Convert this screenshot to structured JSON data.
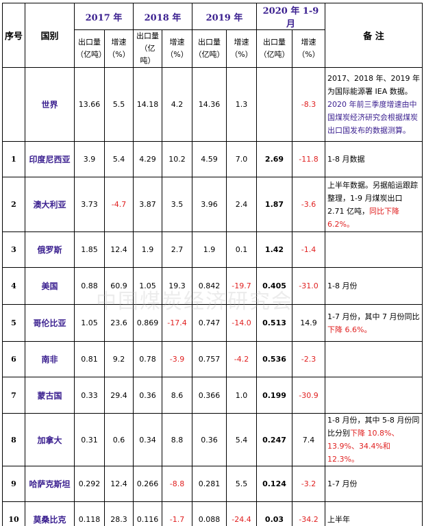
{
  "header": {
    "no": "序号",
    "country": "国别",
    "years": [
      "2017 年",
      "2018 年",
      "2019 年",
      "2020 年 1-9 月"
    ],
    "sub": [
      "出口量（亿吨）",
      "增速（%）"
    ],
    "note": "备 注"
  },
  "watermark": "中国煤炭经济研究会",
  "colors": {
    "country": "#3a1f8f",
    "year": "#3a1f8f",
    "negative": "#e02020",
    "text": "#000000"
  },
  "table": {
    "rows": [
      {
        "no": "",
        "country": "世界",
        "values": [
          "13.66",
          "5.5",
          "14.18",
          "4.2",
          "14.36",
          "1.3",
          "",
          "-8.3"
        ],
        "note": [
          {
            "text": "2017、2018 年、2019 年为国际能源署 IEA 数据。",
            "color": "#000000"
          },
          {
            "text": "2020 年前三季度增速由中国煤炭经济研究会根据煤炭出口国发布的数据测算。",
            "color": "#3a1f8f"
          }
        ]
      },
      {
        "no": "1",
        "country": "印度尼西亚",
        "values": [
          "3.9",
          "5.4",
          "4.29",
          "10.2",
          "4.59",
          "7.0",
          "2.69",
          "-11.8"
        ],
        "note": [
          {
            "text": "1-8 月数据",
            "color": "#000000"
          }
        ]
      },
      {
        "no": "2",
        "country": "澳大利亚",
        "values": [
          "3.73",
          "-4.7",
          "3.87",
          "3.5",
          "3.96",
          "2.4",
          "1.87",
          "-3.6"
        ],
        "note": [
          {
            "text": "上半年数据。另据船运跟踪整理，1-9 月煤炭出口 2.71 亿吨，",
            "color": "#000000"
          },
          {
            "text": "同比下降 6.2%。",
            "color": "#e02020"
          }
        ]
      },
      {
        "no": "3",
        "country": "俄罗斯",
        "values": [
          "1.85",
          "12.4",
          "1.9",
          "2.7",
          "1.9",
          "0.1",
          "1.42",
          "-1.4"
        ],
        "note": []
      },
      {
        "no": "4",
        "country": "美国",
        "values": [
          "0.88",
          "60.9",
          "1.05",
          "19.3",
          "0.842",
          "-19.7",
          "0.405",
          "-31.0"
        ],
        "note": [
          {
            "text": "1-8 月份",
            "color": "#000000"
          }
        ]
      },
      {
        "no": "5",
        "country": "哥伦比亚",
        "values": [
          "1.05",
          "23.6",
          "0.869",
          "-17.4",
          "0.747",
          "-14.0",
          "0.513",
          "14.9"
        ],
        "note": [
          {
            "text": "1-7 月份，其中 7 月份同比",
            "color": "#000000"
          },
          {
            "text": "下降 6.6%。",
            "color": "#e02020"
          }
        ]
      },
      {
        "no": "6",
        "country": "南非",
        "values": [
          "0.81",
          "9.2",
          "0.78",
          "-3.9",
          "0.757",
          "-4.2",
          "0.536",
          "-2.3"
        ],
        "note": []
      },
      {
        "no": "7",
        "country": "蒙古国",
        "values": [
          "0.33",
          "29.4",
          "0.36",
          "8.6",
          "0.366",
          "1.0",
          "0.199",
          "-30.9"
        ],
        "note": []
      },
      {
        "no": "8",
        "country": "加拿大",
        "values": [
          "0.31",
          "0.6",
          "0.34",
          "8.8",
          "0.36",
          "5.4",
          "0.247",
          "7.4"
        ],
        "note": [
          {
            "text": "1-8 月份，其中 5-8 月份同比分别",
            "color": "#000000"
          },
          {
            "text": "下降 10.8%、13.9%、34.4%和 12.3%。",
            "color": "#e02020"
          }
        ]
      },
      {
        "no": "9",
        "country": "哈萨克斯坦",
        "values": [
          "0.292",
          "12.4",
          "0.266",
          "-8.8",
          "0.281",
          "5.5",
          "0.124",
          "-3.2"
        ],
        "note": [
          {
            "text": "1-7 月份",
            "color": "#000000"
          }
        ]
      },
      {
        "no": "10",
        "country": "莫桑比克",
        "values": [
          "0.118",
          "28.3",
          "0.116",
          "-1.7",
          "0.088",
          "-24.4",
          "0.03",
          "-34.2"
        ],
        "note": [
          {
            "text": "上半年",
            "color": "#000000"
          }
        ]
      }
    ]
  }
}
